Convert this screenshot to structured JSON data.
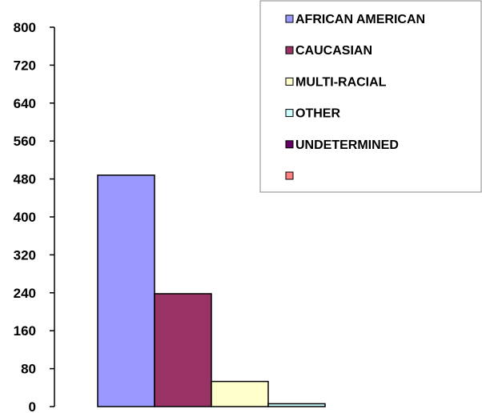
{
  "chart_data": {
    "type": "bar",
    "categories": [
      ""
    ],
    "series": [
      {
        "name": "AFRICAN AMERICAN",
        "values": [
          488
        ],
        "color": "#9999FF"
      },
      {
        "name": "CAUCASIAN",
        "values": [
          238
        ],
        "color": "#993366"
      },
      {
        "name": "MULTI-RACIAL",
        "values": [
          53
        ],
        "color": "#FFFFCC"
      },
      {
        "name": "OTHER",
        "values": [
          6
        ],
        "color": "#CCFFFF"
      },
      {
        "name": "UNDETERMINED",
        "values": [
          0
        ],
        "color": "#660066"
      },
      {
        "name": "",
        "values": [
          0
        ],
        "color": "#FF8080"
      }
    ],
    "title": "",
    "xlabel": "",
    "ylabel": "",
    "ylim": [
      0,
      800
    ],
    "yticks": [
      "0",
      "80",
      "160",
      "240",
      "320",
      "400",
      "480",
      "560",
      "640",
      "720",
      "800"
    ],
    "grid": false,
    "legend": "top-right"
  }
}
